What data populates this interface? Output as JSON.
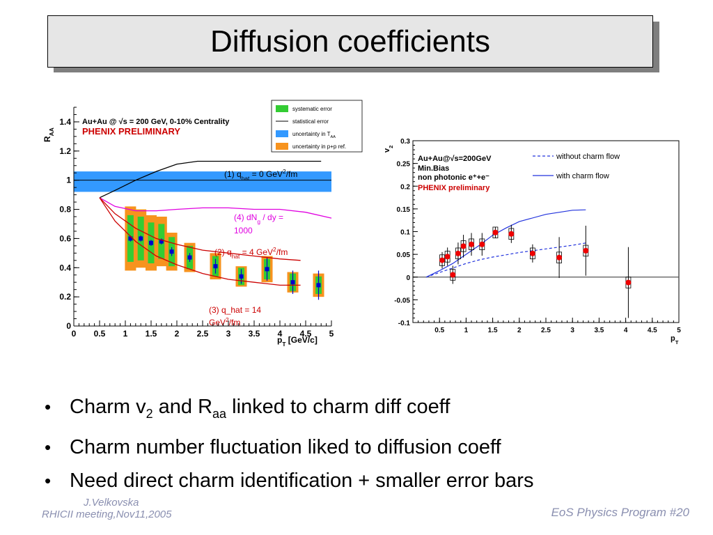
{
  "slide": {
    "title": "Diffusion coefficients",
    "bullets": [
      {
        "parts": [
          "Charm v",
          "2",
          " and R",
          "aa",
          " linked to charm diff coeff"
        ]
      },
      {
        "parts": [
          "Charm number fluctuation liked to diffusion coeff"
        ]
      },
      {
        "parts": [
          "Need direct charm identification + smaller error bars"
        ]
      }
    ],
    "footer": {
      "author": "J.Velkovska",
      "meeting": "RHICII meeting,Nov11,2005",
      "program": "EoS Physics Program  #20"
    }
  },
  "chart_data": [
    {
      "type": "scatter",
      "header": "Au+Au @ √s = 200 GeV, 0-10% Centrality",
      "preliminary": "PHENIX PRELIMINARY",
      "ylabel": "R_AA",
      "xlabel": "p_T [GeV/c]",
      "xlim": [
        0,
        5
      ],
      "ylim": [
        0,
        1.5
      ],
      "xticks": [
        "0",
        "0.5",
        "1",
        "1.5",
        "2",
        "2.5",
        "3",
        "3.5",
        "4",
        "4.5",
        "5"
      ],
      "yticks": [
        "0",
        "0.2",
        "0.4",
        "0.6",
        "0.8",
        "1",
        "1.2",
        "1.4"
      ],
      "legend": [
        "systematic error",
        "statistical error",
        "uncertainty in T_AA",
        "uncertainty in p+p ref."
      ],
      "taa_band": [
        0.92,
        1.06
      ],
      "reference_line": 1,
      "points": [
        {
          "x": 1.1,
          "y": 0.6,
          "stat": 0.02,
          "sys": 0.16,
          "pp": 0.22
        },
        {
          "x": 1.3,
          "y": 0.6,
          "stat": 0.02,
          "sys": 0.15,
          "pp": 0.2
        },
        {
          "x": 1.5,
          "y": 0.57,
          "stat": 0.02,
          "sys": 0.14,
          "pp": 0.19
        },
        {
          "x": 1.7,
          "y": 0.58,
          "stat": 0.02,
          "sys": 0.12,
          "pp": 0.17
        },
        {
          "x": 1.9,
          "y": 0.51,
          "stat": 0.03,
          "sys": 0.1,
          "pp": 0.13
        },
        {
          "x": 2.25,
          "y": 0.47,
          "stat": 0.03,
          "sys": 0.08,
          "pp": 0.1
        },
        {
          "x": 2.75,
          "y": 0.41,
          "stat": 0.05,
          "sys": 0.07,
          "pp": 0.09
        },
        {
          "x": 3.25,
          "y": 0.34,
          "stat": 0.05,
          "sys": 0.06,
          "pp": 0.07
        },
        {
          "x": 3.75,
          "y": 0.39,
          "stat": 0.08,
          "sys": 0.07,
          "pp": 0.09
        },
        {
          "x": 4.25,
          "y": 0.3,
          "stat": 0.08,
          "sys": 0.06,
          "pp": 0.07
        },
        {
          "x": 4.75,
          "y": 0.28,
          "stat": 0.1,
          "sys": 0.06,
          "pp": 0.08
        }
      ],
      "curves": [
        {
          "label": "(1) q_hat = 0 GeV²/fm",
          "color": "#000000",
          "x": [
            0.5,
            0.8,
            1.2,
            1.6,
            2.0,
            2.4,
            2.8,
            3.2,
            3.6,
            4.0,
            4.4,
            4.8
          ],
          "y": [
            0.88,
            0.93,
            1.0,
            1.06,
            1.11,
            1.13,
            1.13,
            1.13,
            1.13,
            1.13,
            1.13,
            1.13
          ]
        },
        {
          "label": "(4) dN_g / dy = 1000",
          "color": "#e000e0",
          "x": [
            0.5,
            0.8,
            1.2,
            1.6,
            2.0,
            2.5,
            3.0,
            3.5,
            4.0,
            4.5,
            5.0
          ],
          "y": [
            0.88,
            0.82,
            0.79,
            0.79,
            0.8,
            0.81,
            0.81,
            0.8,
            0.8,
            0.78,
            0.74
          ]
        },
        {
          "label": "(2) q_hat = 4 GeV²/fm",
          "color": "#cc0000",
          "x": [
            0.5,
            0.8,
            1.2,
            1.6,
            2.0,
            2.5,
            3.0,
            3.5,
            4.0,
            4.4
          ],
          "y": [
            0.88,
            0.77,
            0.67,
            0.6,
            0.56,
            0.52,
            0.5,
            0.48,
            0.46,
            0.45
          ]
        },
        {
          "label": "(3) q_hat = 14 GeV²/fm",
          "color": "#cc0000",
          "x": [
            0.5,
            0.8,
            1.2,
            1.6,
            2.0,
            2.5,
            3.0,
            3.5,
            4.0,
            4.4
          ],
          "y": [
            0.88,
            0.72,
            0.58,
            0.48,
            0.42,
            0.36,
            0.32,
            0.3,
            0.28,
            0.28
          ]
        }
      ]
    },
    {
      "type": "scatter",
      "header_lines": [
        "Au+Au@√s_NN=200GeV",
        "Min.Bias",
        "non photonic e⁺+e⁻",
        "PHENIX preliminary"
      ],
      "ylabel": "v_2",
      "xlabel": "p_T",
      "xlim": [
        0,
        5
      ],
      "ylim": [
        -0.1,
        0.3
      ],
      "xticks": [
        "0.5",
        "1",
        "1.5",
        "2",
        "2.5",
        "3",
        "3.5",
        "4",
        "4.5",
        "5"
      ],
      "yticks": [
        "-0.1",
        "-0.05",
        "0",
        "0.05",
        "0.1",
        "0.15",
        "0.2",
        "0.25",
        "0.3"
      ],
      "legend": [
        "without charm flow",
        "with charm flow"
      ],
      "reference_line": 0,
      "points": [
        {
          "x": 0.55,
          "y": 0.037,
          "err": 0.018,
          "sys": 0.012
        },
        {
          "x": 0.65,
          "y": 0.045,
          "err": 0.02,
          "sys": 0.012
        },
        {
          "x": 0.75,
          "y": 0.005,
          "err": 0.02,
          "sys": 0.012
        },
        {
          "x": 0.85,
          "y": 0.052,
          "err": 0.024,
          "sys": 0.012
        },
        {
          "x": 0.95,
          "y": 0.068,
          "err": 0.025,
          "sys": 0.012
        },
        {
          "x": 1.1,
          "y": 0.072,
          "err": 0.025,
          "sys": 0.012
        },
        {
          "x": 1.3,
          "y": 0.072,
          "err": 0.025,
          "sys": 0.012
        },
        {
          "x": 1.55,
          "y": 0.098,
          "err": 0.012,
          "sys": 0.012
        },
        {
          "x": 1.85,
          "y": 0.095,
          "err": 0.02,
          "sys": 0.012
        },
        {
          "x": 2.25,
          "y": 0.052,
          "err": 0.02,
          "sys": 0.012
        },
        {
          "x": 2.75,
          "y": 0.043,
          "err": 0.045,
          "sys": 0.012
        },
        {
          "x": 3.25,
          "y": 0.058,
          "err": 0.055,
          "sys": 0.012
        },
        {
          "x": 4.05,
          "y": -0.012,
          "err": 0.078,
          "sys": 0.012
        }
      ],
      "curves": [
        {
          "label": "without charm flow",
          "dash": true,
          "x": [
            0.25,
            0.5,
            0.75,
            1.0,
            1.25,
            1.5,
            1.75,
            2.0,
            2.5,
            3.0,
            3.25
          ],
          "y": [
            0.0,
            0.01,
            0.02,
            0.03,
            0.038,
            0.044,
            0.049,
            0.054,
            0.062,
            0.07,
            0.075
          ]
        },
        {
          "label": "with charm flow",
          "dash": false,
          "x": [
            0.25,
            0.5,
            0.75,
            1.0,
            1.25,
            1.5,
            1.75,
            2.0,
            2.5,
            3.0,
            3.25
          ],
          "y": [
            0.0,
            0.014,
            0.03,
            0.05,
            0.07,
            0.092,
            0.108,
            0.122,
            0.138,
            0.147,
            0.148
          ]
        }
      ]
    }
  ]
}
